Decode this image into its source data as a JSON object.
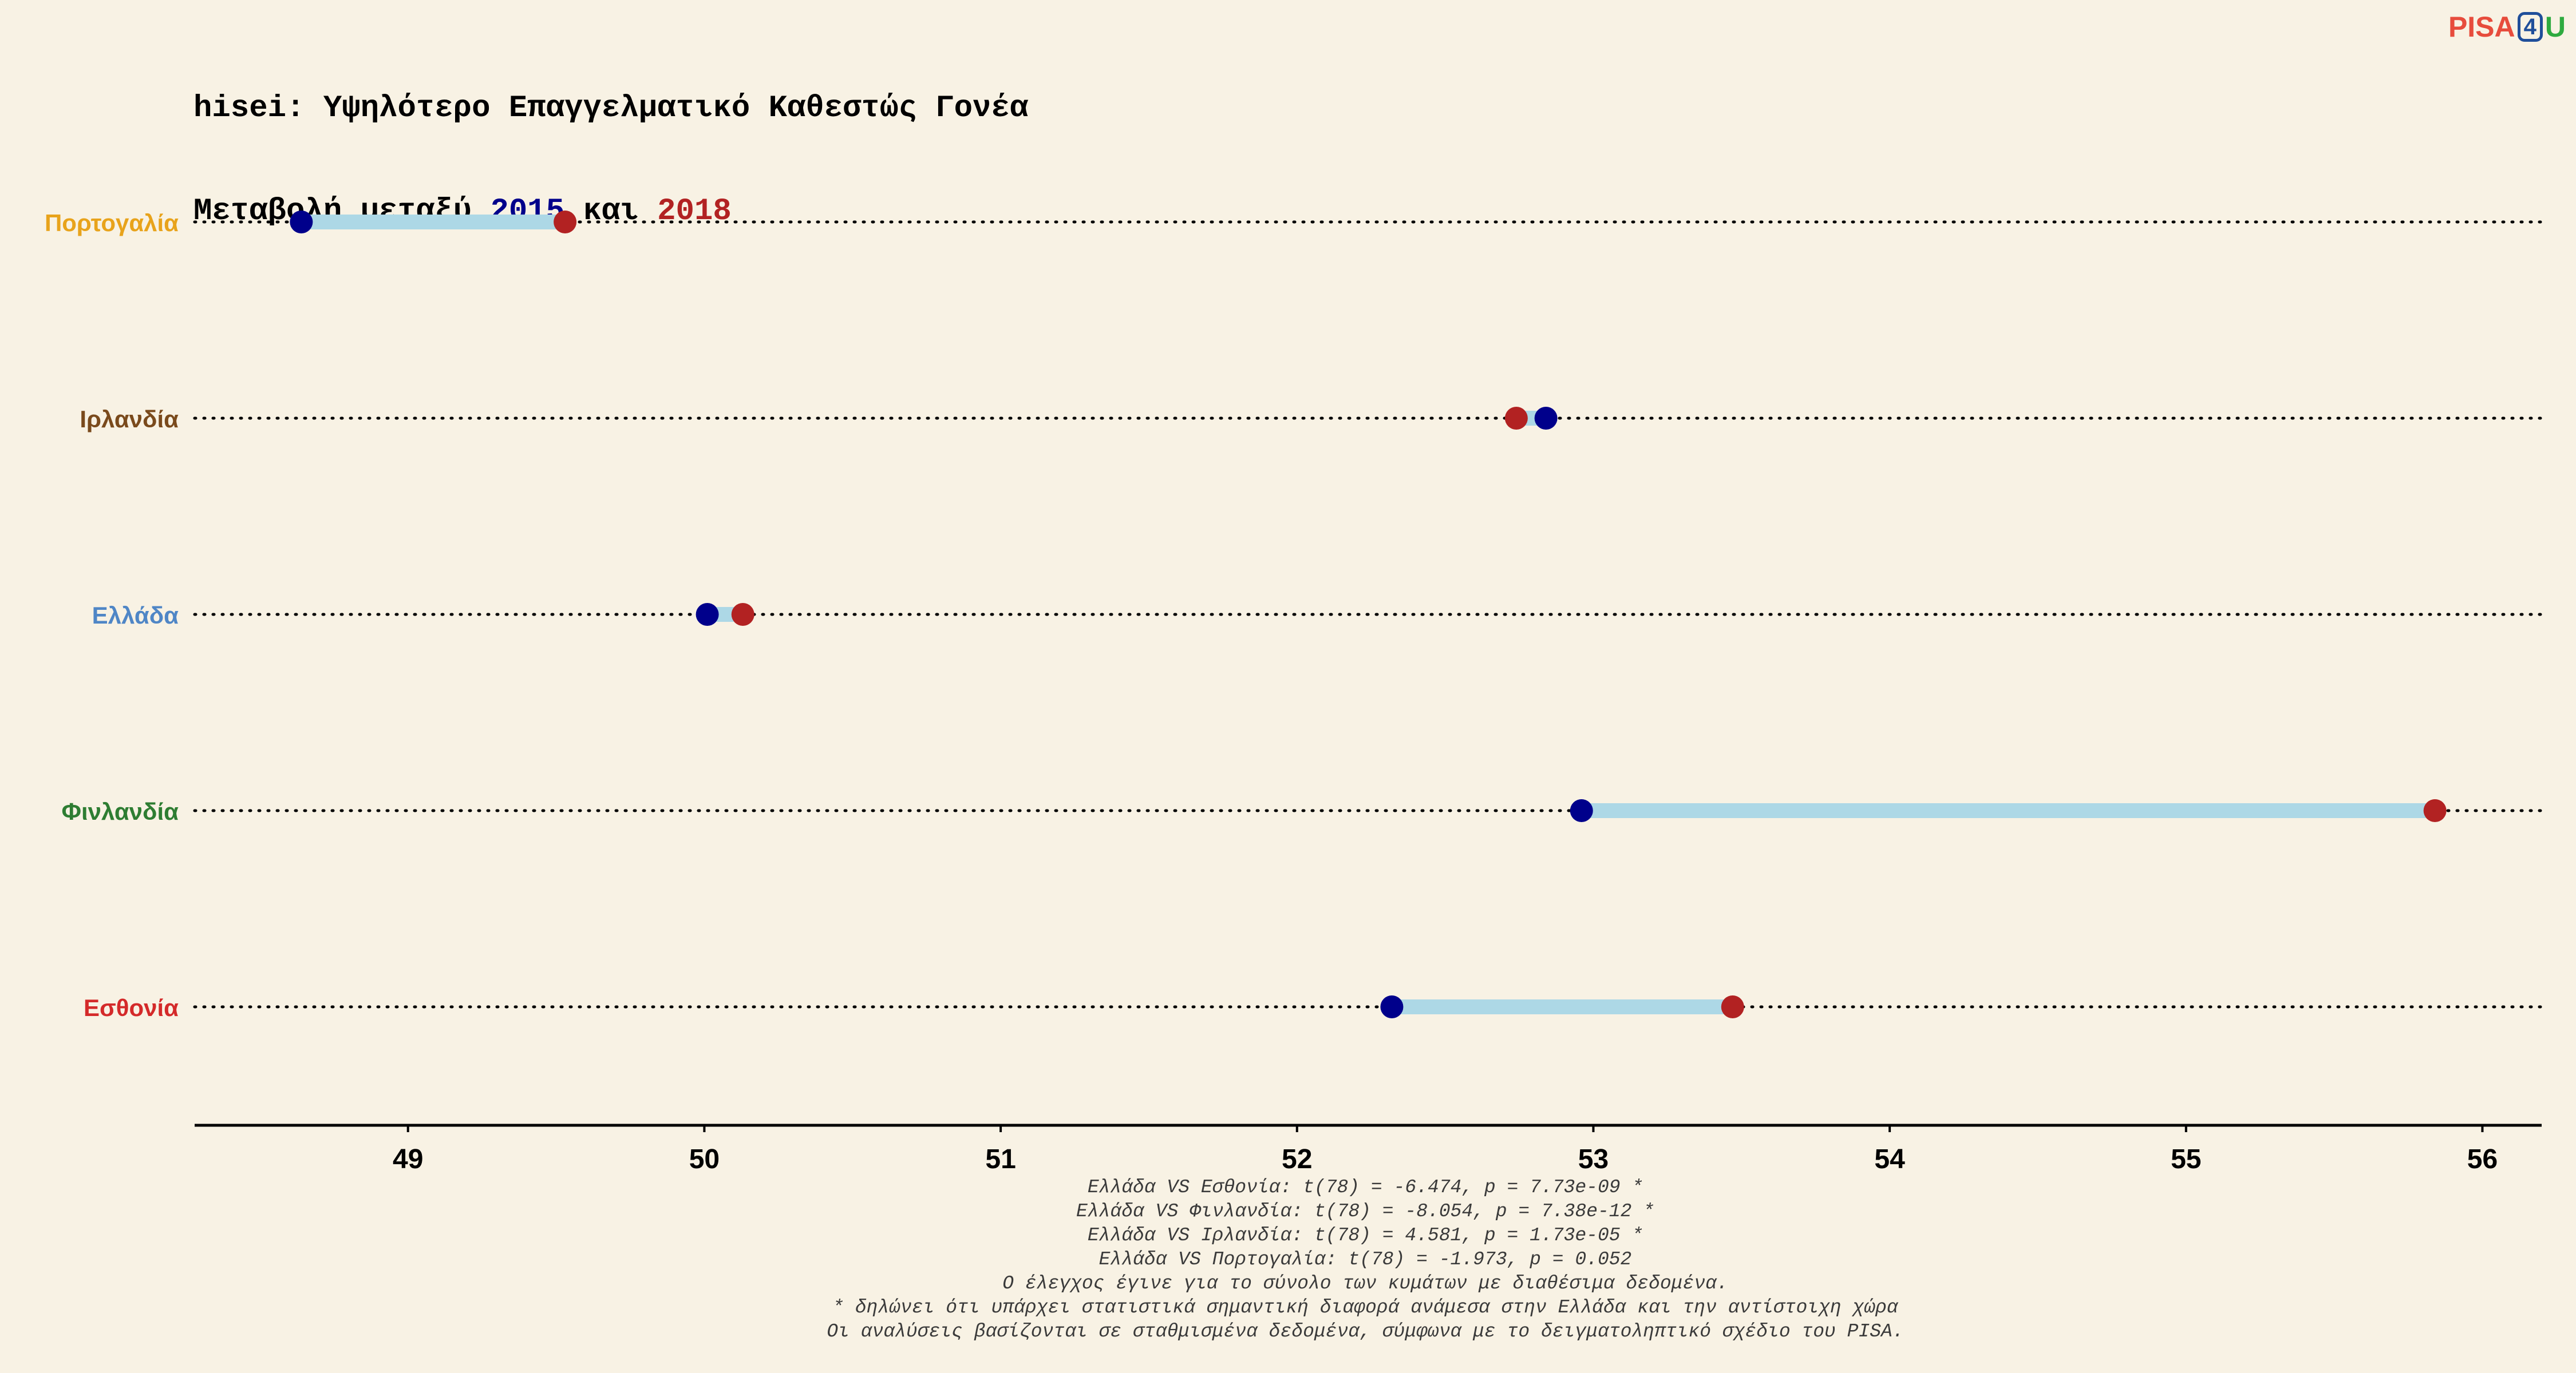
{
  "header": {
    "title": "hisei: Υψηλότερο Επαγγελματικό Καθεστώς Γονέα",
    "subtitle_prefix": "Μεταβολή μεταξύ ",
    "subtitle_year1": "2015",
    "subtitle_middle": " και ",
    "subtitle_year2": "2018"
  },
  "logo": {
    "part1": "PISA",
    "part2": "4",
    "part3": "U"
  },
  "colors": {
    "background": "#f8f2e4",
    "dot_2015": "#00008b",
    "dot_2018": "#b22222",
    "segment": "#add8e6"
  },
  "chart_data": {
    "type": "dumbbell",
    "xlim": [
      48.28,
      56.2
    ],
    "xticks": [
      49,
      50,
      51,
      52,
      53,
      54,
      55,
      56
    ],
    "grid": false,
    "series": [
      {
        "name": "2015",
        "color": "#00008b"
      },
      {
        "name": "2018",
        "color": "#b22222"
      }
    ],
    "categories": [
      {
        "label": "Πορτογαλία",
        "label_color": "#e8a31b",
        "v2015": 48.64,
        "v2018": 49.53
      },
      {
        "label": "Ιρλανδία",
        "label_color": "#7a4a1c",
        "v2015": 52.84,
        "v2018": 52.74
      },
      {
        "label": "Ελλάδα",
        "label_color": "#4f86c6",
        "v2015": 50.01,
        "v2018": 50.13
      },
      {
        "label": "Φινλανδία",
        "label_color": "#2e7d32",
        "v2015": 52.96,
        "v2018": 55.84
      },
      {
        "label": "Εσθονία",
        "label_color": "#d42a2a",
        "v2015": 52.32,
        "v2018": 53.47
      }
    ]
  },
  "footer": {
    "lines": [
      "Ελλάδα VS Εσθονία: t(78) = -6.474, p = 7.73e-09 *",
      "Ελλάδα VS Φινλανδία: t(78) = -8.054, p = 7.38e-12 *",
      "Ελλάδα VS Ιρλανδία: t(78) = 4.581, p = 1.73e-05 *",
      "Ελλάδα VS Πορτογαλία: t(78) = -1.973, p = 0.052",
      "Ο έλεγχος έγινε για το σύνολο των κυμάτων με διαθέσιμα δεδομένα.",
      "* δηλώνει ότι υπάρχει στατιστικά σημαντική διαφορά ανάμεσα στην Ελλάδα και την αντίστοιχη χώρα",
      "Οι αναλύσεις βασίζονται σε σταθμισμένα δεδομένα, σύμφωνα με το δειγματοληπτικό σχέδιο του PISA."
    ]
  }
}
